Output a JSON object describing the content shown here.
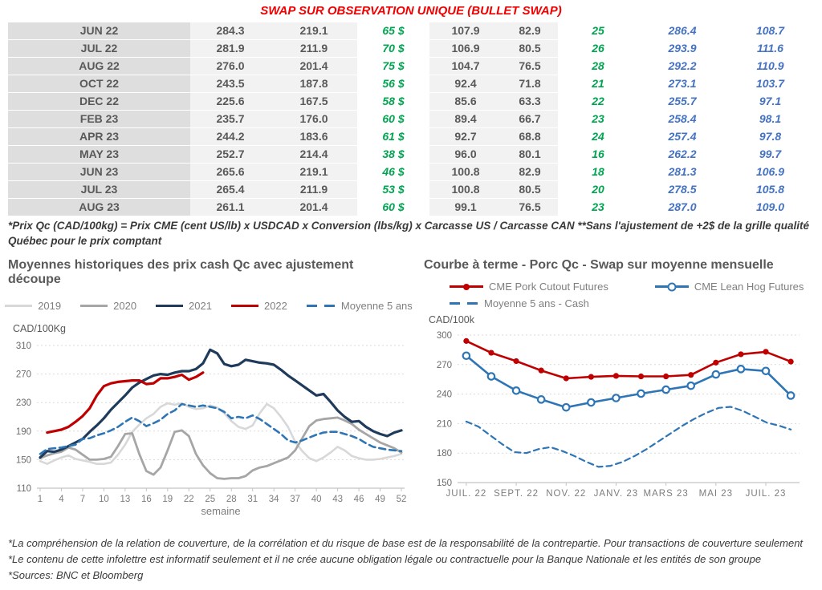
{
  "title": "SWAP SUR OBSERVATION UNIQUE (BULLET SWAP)",
  "colors": {
    "title_red": "#f00000",
    "table_green": "#00a550",
    "table_blue": "#4472c4",
    "table_text": "#595959",
    "line_2019": "#d8d8d8",
    "line_2020": "#a6a6a6",
    "line_2021": "#1f3b5c",
    "line_2022": "#c00000",
    "line_steel_blue": "#2e75b6"
  },
  "table": {
    "rows": [
      {
        "month": "JUN 22",
        "values": [
          "284.3",
          "219.1",
          "65 $",
          "107.9",
          "82.9",
          "25",
          "286.4",
          "108.7"
        ]
      },
      {
        "month": "JUL 22",
        "values": [
          "281.9",
          "211.9",
          "70 $",
          "106.9",
          "80.5",
          "26",
          "293.9",
          "111.6"
        ]
      },
      {
        "month": "AUG 22",
        "values": [
          "276.0",
          "201.4",
          "75 $",
          "104.7",
          "76.5",
          "28",
          "292.2",
          "110.9"
        ]
      },
      {
        "month": "OCT 22",
        "values": [
          "243.5",
          "187.8",
          "56 $",
          "92.4",
          "71.8",
          "21",
          "273.1",
          "103.7"
        ]
      },
      {
        "month": "DEC 22",
        "values": [
          "225.6",
          "167.5",
          "58 $",
          "85.6",
          "63.3",
          "22",
          "255.7",
          "97.1"
        ]
      },
      {
        "month": "FEB 23",
        "values": [
          "235.7",
          "176.0",
          "60 $",
          "89.4",
          "66.7",
          "23",
          "258.4",
          "98.1"
        ]
      },
      {
        "month": "APR 23",
        "values": [
          "244.2",
          "183.6",
          "61 $",
          "92.7",
          "68.8",
          "24",
          "257.4",
          "97.8"
        ]
      },
      {
        "month": "MAY 23",
        "values": [
          "252.7",
          "214.4",
          "38 $",
          "96.0",
          "80.1",
          "16",
          "262.2",
          "99.7"
        ]
      },
      {
        "month": "JUN 23",
        "values": [
          "265.6",
          "219.1",
          "46 $",
          "100.8",
          "82.9",
          "18",
          "281.3",
          "106.9"
        ]
      },
      {
        "month": "JUL 23",
        "values": [
          "265.4",
          "211.9",
          "53 $",
          "100.8",
          "80.5",
          "20",
          "278.5",
          "105.8"
        ]
      },
      {
        "month": "AUG 23",
        "values": [
          "261.1",
          "201.4",
          "60 $",
          "99.1",
          "76.5",
          "23",
          "287.0",
          "109.0"
        ]
      }
    ]
  },
  "table_note": "*Prix Qc (CAD/100kg) = Prix CME (cent US/lb) x USDCAD x Conversion (lbs/kg) x Carcasse US / Carcasse CAN **Sans l'ajustement de +2$ de la grille qualité Québec pour le prix comptant",
  "chart_data": [
    {
      "type": "line",
      "title": "Moyennes historiques des prix cash Qc avec ajustement découpe",
      "ylabel": "CAD/100Kg",
      "xlabel": "semaine",
      "ylim": [
        110,
        310
      ],
      "yticks": [
        310,
        270,
        230,
        190,
        150,
        110
      ],
      "xticks": [
        1,
        4,
        7,
        10,
        13,
        16,
        19,
        22,
        25,
        28,
        31,
        34,
        37,
        40,
        43,
        46,
        49,
        52
      ],
      "grid": true,
      "legend_position": "top",
      "series": [
        {
          "name": "2019",
          "color": "#d8d8d8",
          "width": 2.6,
          "x_start": 1,
          "values": [
            148,
            144,
            149,
            153,
            156,
            151,
            149,
            147,
            144,
            144,
            146,
            157,
            171,
            189,
            199,
            208,
            214,
            224,
            229,
            227,
            229,
            224,
            221,
            222,
            226,
            223,
            215,
            204,
            196,
            193,
            198,
            215,
            228,
            222,
            210,
            196,
            175,
            162,
            152,
            148,
            153,
            160,
            168,
            163,
            155,
            152,
            150,
            150,
            151,
            153,
            155,
            158
          ]
        },
        {
          "name": "2020",
          "color": "#a6a6a6",
          "width": 2.8,
          "x_start": 1,
          "values": [
            152,
            156,
            159,
            161,
            167,
            164,
            157,
            150,
            150,
            151,
            154,
            169,
            186,
            187,
            158,
            134,
            129,
            139,
            163,
            189,
            191,
            183,
            158,
            142,
            131,
            124,
            123,
            124,
            124,
            127,
            135,
            139,
            141,
            145,
            149,
            153,
            163,
            180,
            197,
            205,
            207,
            208,
            209,
            205,
            200,
            192,
            186,
            180,
            174,
            170,
            166,
            160
          ]
        },
        {
          "name": "2021",
          "color": "#1f3b5c",
          "width": 3.2,
          "x_start": 1,
          "values": [
            153,
            162,
            161,
            164,
            169,
            174,
            179,
            189,
            198,
            208,
            220,
            230,
            240,
            251,
            258,
            263,
            268,
            270,
            269,
            272,
            274,
            274,
            277,
            285,
            304,
            299,
            284,
            281,
            283,
            290,
            288,
            286,
            285,
            283,
            276,
            268,
            261,
            254,
            247,
            240,
            242,
            231,
            219,
            210,
            203,
            204,
            196,
            190,
            186,
            183,
            188,
            191
          ]
        },
        {
          "name": "2022",
          "color": "#c00000",
          "width": 3.2,
          "x_start": 2,
          "values": [
            188,
            190,
            192,
            196,
            203,
            211,
            222,
            240,
            253,
            257,
            259,
            260,
            261,
            261,
            256,
            257,
            264,
            264,
            266,
            269,
            262,
            266,
            272
          ]
        },
        {
          "name": "Moyenne 5 ans",
          "color": "#2e75b6",
          "width": 2.6,
          "dash": "8 5",
          "x_start": 1,
          "values": [
            158,
            165,
            166,
            167,
            169,
            171,
            179,
            180,
            184,
            187,
            191,
            196,
            203,
            209,
            204,
            197,
            201,
            206,
            214,
            219,
            228,
            226,
            224,
            226,
            224,
            222,
            217,
            208,
            210,
            208,
            212,
            207,
            200,
            193,
            186,
            177,
            174,
            177,
            181,
            185,
            188,
            189,
            189,
            186,
            183,
            179,
            173,
            168,
            166,
            164,
            163,
            162
          ]
        }
      ]
    },
    {
      "type": "line",
      "title": "Courbe à terme - Porc Qc - Swap sur moyenne mensuelle",
      "ylabel": "CAD/100k",
      "ylim": [
        150,
        300
      ],
      "yticks": [
        300,
        270,
        240,
        210,
        180,
        150
      ],
      "xtick_labels": [
        "JUIL. 22",
        "SEPT. 22",
        "NOV. 22",
        "JANV. 23",
        "MARS 23",
        "MAI 23",
        "JUIL. 23"
      ],
      "xtick_positions": [
        0,
        2,
        4,
        6,
        8,
        10,
        12
      ],
      "grid": true,
      "legend_position": "top",
      "series": [
        {
          "name": "CME Pork Cutout Futures",
          "color": "#c00000",
          "width": 2.6,
          "marker": "dot",
          "x_start": 0,
          "values": [
            294,
            282,
            273.5,
            264,
            256,
            257.5,
            258.5,
            258,
            258,
            259.5,
            272,
            280.5,
            283,
            273
          ]
        },
        {
          "name": "CME Lean Hog Futures",
          "color": "#2e75b6",
          "width": 2.6,
          "marker": "ring",
          "x_start": 0,
          "values": [
            279,
            258,
            243.5,
            234.5,
            226.5,
            231.5,
            236,
            240.5,
            244.5,
            248.5,
            260,
            265.5,
            263.5,
            238.5
          ]
        },
        {
          "name": "Moyenne 5 ans - Cash",
          "color": "#2e75b6",
          "width": 2.2,
          "dash": "7 5",
          "x_span": 13,
          "values": [
            212,
            207,
            198,
            189,
            181,
            180,
            184,
            186,
            182,
            177,
            171,
            166,
            167,
            171,
            177,
            184,
            192,
            200,
            208,
            215,
            221,
            226,
            227,
            223,
            217,
            211,
            208,
            204
          ]
        }
      ]
    }
  ],
  "footer": {
    "lines": [
      "*La compréhension de la relation de couverture, de la corrélation et du risque de base est de la responsabilité de la contrepartie. Pour transactions de couverture seulement",
      "*Le contenu de cette infolettre est informatif seulement et il ne crée aucune obligation légale ou contractuelle pour la Banque Nationale et les entités de son groupe",
      "*Sources: BNC et Bloomberg"
    ]
  }
}
